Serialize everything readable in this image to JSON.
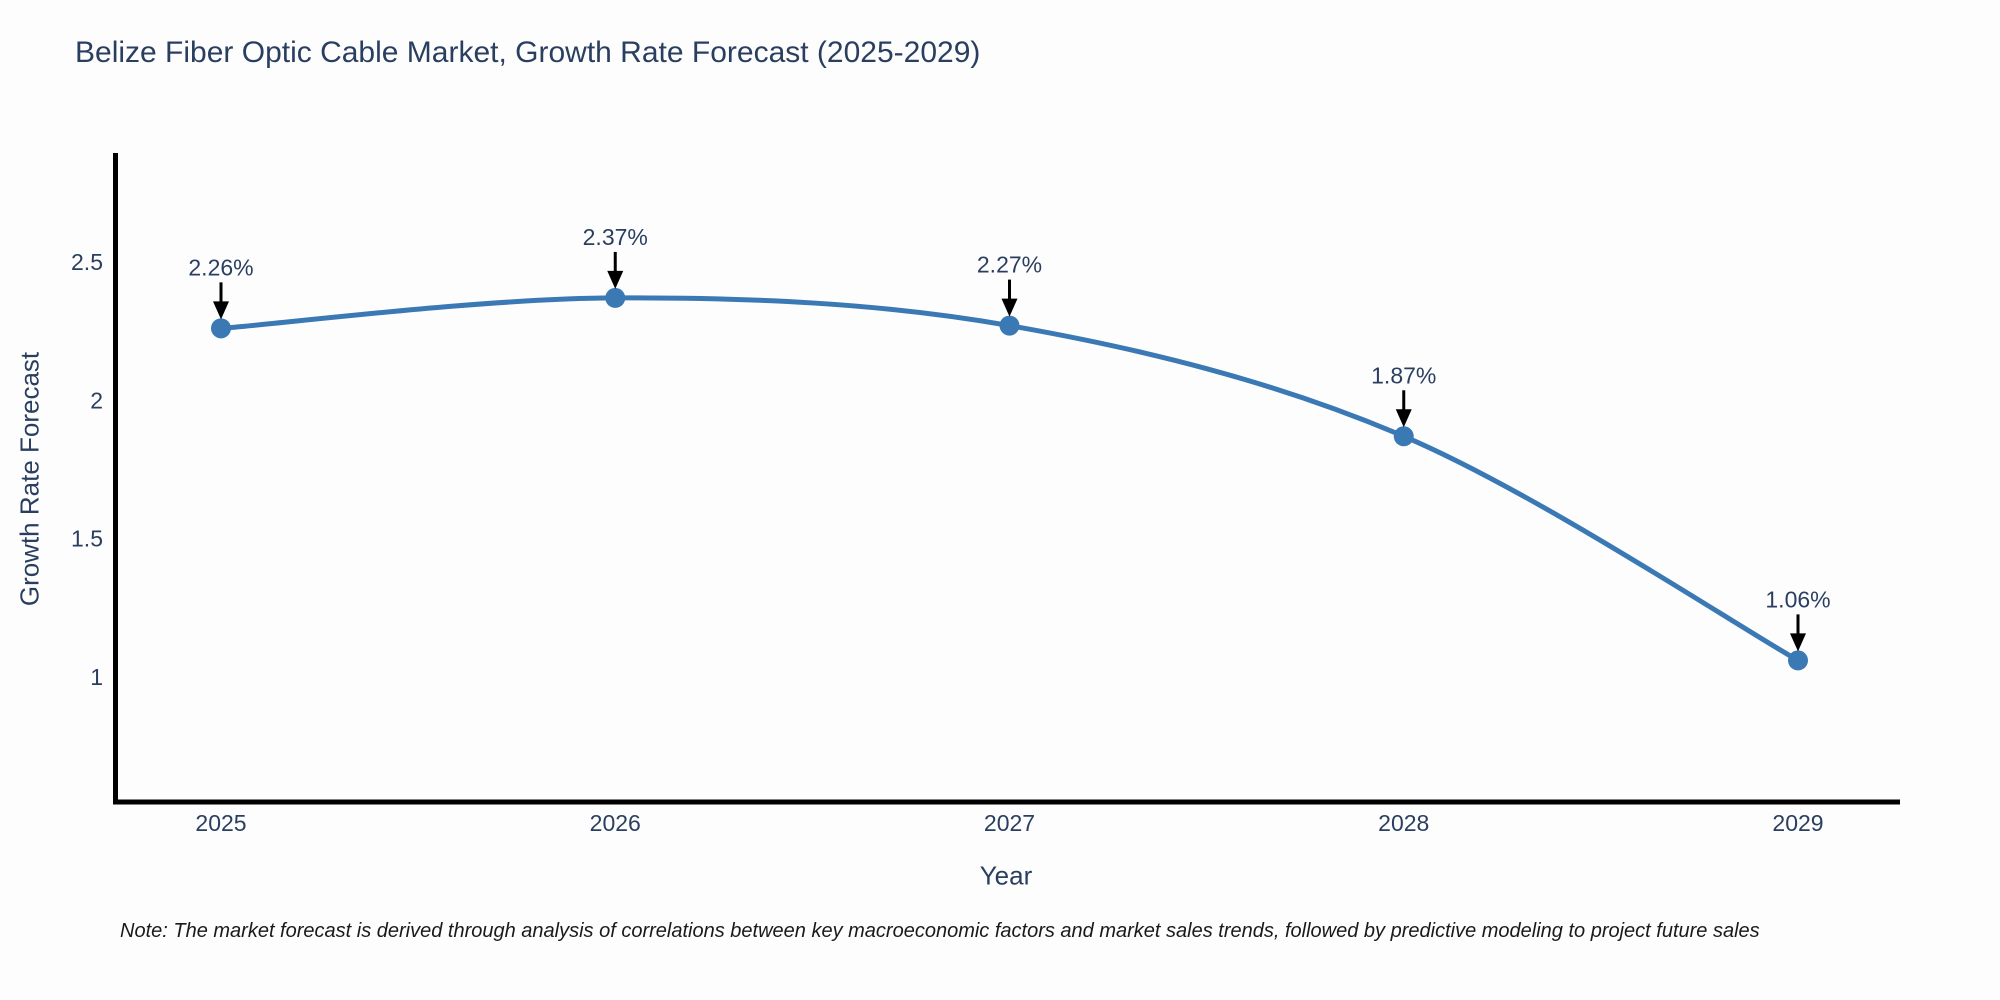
{
  "title": "Belize Fiber Optic Cable Market, Growth Rate Forecast (2025-2029)",
  "note": "Note: The market forecast is derived through analysis of correlations between key macroeconomic factors and market sales trends, followed by predictive modeling to project future sales",
  "colors": {
    "line": "#3b79b5",
    "marker": "#3b79b5",
    "axis": "#000000",
    "tick_text": "#2a3f5f",
    "annotation_text": "#2a3f5f",
    "arrow": "#000000",
    "background": "#fdfdfe"
  },
  "chart_data": {
    "type": "line",
    "title": "Belize Fiber Optic Cable Market, Growth Rate Forecast (2025-2029)",
    "xlabel": "Year",
    "ylabel": "Growth Rate Forecast",
    "x": [
      "2025",
      "2026",
      "2027",
      "2028",
      "2029"
    ],
    "values": [
      2.26,
      2.37,
      2.27,
      1.87,
      1.06
    ],
    "point_labels": [
      "2.26%",
      "2.37%",
      "2.27%",
      "1.87%",
      "1.06%"
    ],
    "yticks": [
      1,
      1.5,
      2,
      2.5
    ],
    "ylim": [
      0.55,
      2.89
    ],
    "grid": false,
    "legend": "none",
    "line_shape": "spline",
    "marker": "circle",
    "annotations": "arrow-down-to-point"
  }
}
